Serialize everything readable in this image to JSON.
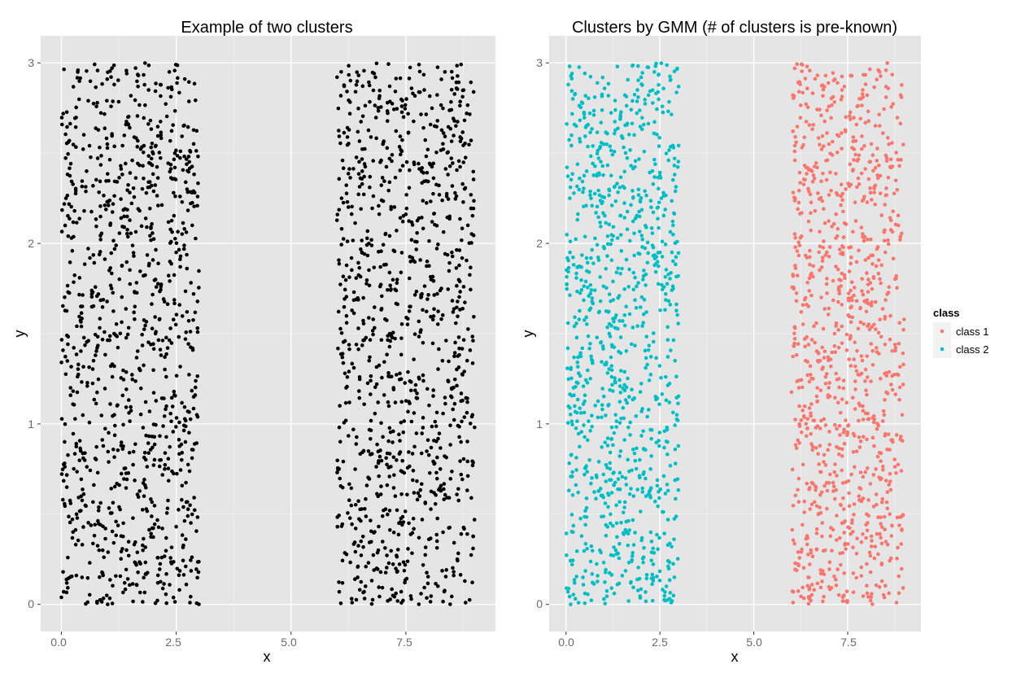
{
  "chart_data": [
    {
      "type": "scatter",
      "title": "Example of two clusters",
      "xlabel": "x",
      "ylabel": "y",
      "xlim": [
        -0.45,
        9.45
      ],
      "ylim": [
        -0.15,
        3.15
      ],
      "x_ticks": [
        0.0,
        2.5,
        5.0,
        7.5
      ],
      "x_tick_labels": [
        "0.0",
        "2.5",
        "5.0",
        "7.5"
      ],
      "y_ticks": [
        0,
        1,
        2,
        3
      ],
      "y_tick_labels": [
        "0",
        "1",
        "2",
        "3"
      ],
      "grid": true,
      "series": [
        {
          "color": "#000000",
          "x_range": [
            0.0,
            3.0
          ],
          "y_range": [
            0.0,
            3.0
          ],
          "count": 1000,
          "x": [
            0.05,
            0.45,
            0.9,
            1.35,
            1.8,
            2.25,
            2.7,
            2.95,
            0.2,
            0.7,
            1.15,
            1.6,
            2.05,
            2.5,
            2.85,
            0.1,
            0.55,
            1.0,
            1.45,
            1.9,
            2.35,
            2.8
          ],
          "y": [
            0.07,
            0.15,
            0.3,
            0.45,
            0.6,
            0.75,
            0.9,
            1.05,
            1.2,
            1.35,
            1.5,
            1.65,
            1.8,
            1.95,
            2.1,
            2.25,
            2.4,
            2.55,
            2.7,
            2.85,
            2.95,
            0.01
          ]
        },
        {
          "color": "#000000",
          "x_range": [
            6.0,
            9.0
          ],
          "y_range": [
            0.0,
            3.0
          ],
          "count": 1000,
          "x": [
            6.05,
            6.45,
            6.9,
            7.35,
            7.8,
            8.25,
            8.7,
            8.95,
            6.2,
            6.7,
            7.15,
            7.6,
            8.05,
            8.5,
            8.85,
            6.1,
            6.55,
            7.0,
            7.45,
            7.9,
            8.35,
            8.8
          ],
          "y": [
            0.07,
            0.15,
            0.3,
            0.45,
            0.6,
            0.75,
            0.9,
            1.05,
            1.2,
            1.35,
            1.5,
            1.65,
            1.8,
            1.95,
            2.1,
            2.25,
            2.4,
            2.55,
            2.7,
            2.85,
            2.95,
            0.01
          ]
        }
      ]
    },
    {
      "type": "scatter",
      "title": "Clusters by GMM (# of clusters is pre-known)",
      "xlabel": "x",
      "ylabel": "y",
      "xlim": [
        -0.45,
        9.45
      ],
      "ylim": [
        -0.15,
        3.15
      ],
      "x_ticks": [
        0.0,
        2.5,
        5.0,
        7.5
      ],
      "x_tick_labels": [
        "0.0",
        "2.5",
        "5.0",
        "7.5"
      ],
      "y_ticks": [
        0,
        1,
        2,
        3
      ],
      "y_tick_labels": [
        "0",
        "1",
        "2",
        "3"
      ],
      "grid": true,
      "legend": {
        "title": "class",
        "placement": "right"
      },
      "series": [
        {
          "name": "class 1",
          "color": "#f8766d",
          "x_range": [
            6.0,
            9.0
          ],
          "y_range": [
            0.0,
            3.0
          ],
          "count": 1000,
          "x": [
            6.05,
            6.45,
            6.9,
            7.35,
            7.8,
            8.25,
            8.7,
            8.95,
            6.2,
            6.7,
            7.15,
            7.6,
            8.05,
            8.5,
            8.85,
            6.1,
            6.55,
            7.0,
            7.45,
            7.9,
            8.35,
            8.8
          ],
          "y": [
            0.07,
            0.15,
            0.3,
            0.45,
            0.6,
            0.75,
            0.9,
            1.05,
            1.2,
            1.35,
            1.5,
            1.65,
            1.8,
            1.95,
            2.1,
            2.25,
            2.4,
            2.55,
            2.7,
            2.85,
            2.95,
            0.01
          ]
        },
        {
          "name": "class 2",
          "color": "#00bfc4",
          "x_range": [
            0.0,
            3.0
          ],
          "y_range": [
            0.0,
            3.0
          ],
          "count": 1000,
          "x": [
            0.05,
            0.45,
            0.9,
            1.35,
            1.8,
            2.25,
            2.7,
            2.95,
            0.2,
            0.7,
            1.15,
            1.6,
            2.05,
            2.5,
            2.85,
            0.1,
            0.55,
            1.0,
            1.45,
            1.9,
            2.35,
            2.8
          ],
          "y": [
            0.07,
            0.15,
            0.3,
            0.45,
            0.6,
            0.75,
            0.9,
            1.05,
            1.2,
            1.35,
            1.5,
            1.65,
            1.8,
            1.95,
            2.1,
            2.25,
            2.4,
            2.55,
            2.7,
            2.85,
            2.95,
            0.01
          ]
        }
      ]
    }
  ]
}
